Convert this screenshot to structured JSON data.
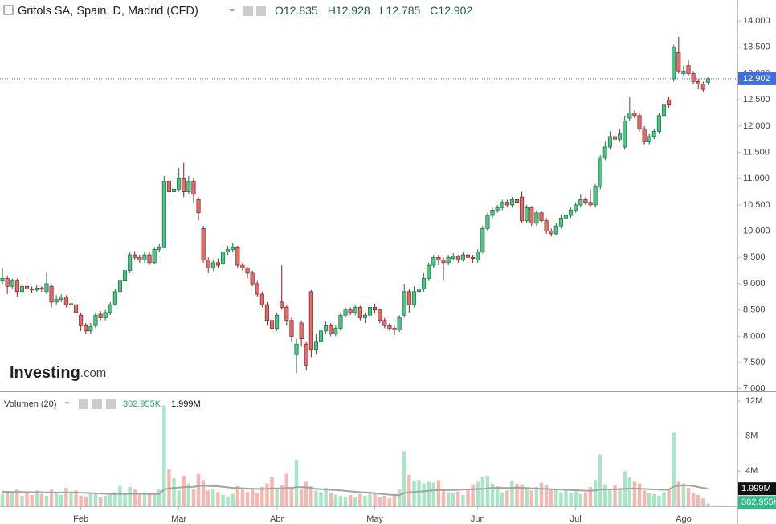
{
  "chart_data": {
    "type": "candlestick",
    "title": "Grifols SA, Spain, D, Madrid (CFD)",
    "legend_letters": [
      "O",
      "H",
      "L",
      "C"
    ],
    "brand": "Investing",
    "brand_suffix": ".com",
    "up_color": "#4cc486",
    "up_border": "#1d6b41",
    "down_color": "#e36b6b",
    "down_border": "#7d2222",
    "last_price_color": "#3d6fe0",
    "ylim": [
      6.95,
      14.4
    ],
    "yticks": [
      {
        "value": 7,
        "label": "7.000"
      },
      {
        "value": 7.5,
        "label": "7.500"
      },
      {
        "value": 8,
        "label": "8.000"
      },
      {
        "value": 8.5,
        "label": "8.500"
      },
      {
        "value": 9,
        "label": "9.000"
      },
      {
        "value": 9.5,
        "label": "9.500"
      },
      {
        "value": 10,
        "label": "10.000"
      },
      {
        "value": 10.5,
        "label": "10.500"
      },
      {
        "value": 11,
        "label": "11.000"
      },
      {
        "value": 11.5,
        "label": "11.500"
      },
      {
        "value": 12,
        "label": "12.000"
      },
      {
        "value": 12.5,
        "label": "12.500"
      },
      {
        "value": 13,
        "label": "13.000"
      },
      {
        "value": 13.5,
        "label": "13.500"
      },
      {
        "value": 14,
        "label": "14.000"
      }
    ],
    "xlim": [
      -0.5,
      150
    ],
    "xticks": [
      {
        "value": 16,
        "label": "Feb"
      },
      {
        "value": 36,
        "label": "Mar"
      },
      {
        "value": 56,
        "label": "Abr"
      },
      {
        "value": 76,
        "label": "May"
      },
      {
        "value": 97,
        "label": "Jun"
      },
      {
        "value": 117,
        "label": "Jul"
      },
      {
        "value": 139,
        "label": "Ago"
      }
    ],
    "ohlc": [
      [
        9.05,
        9.3,
        9.0,
        9.1
      ],
      [
        9.1,
        9.15,
        8.8,
        8.95
      ],
      [
        8.95,
        9.1,
        8.9,
        9.05
      ],
      [
        9.05,
        9.1,
        8.75,
        8.85
      ],
      [
        8.85,
        9.0,
        8.8,
        8.95
      ],
      [
        8.95,
        9.05,
        8.85,
        8.9
      ],
      [
        8.9,
        8.95,
        8.82,
        8.88
      ],
      [
        8.88,
        8.98,
        8.85,
        8.92
      ],
      [
        8.92,
        8.95,
        8.85,
        8.9
      ],
      [
        8.85,
        9.2,
        8.8,
        9.0
      ],
      [
        8.95,
        9.0,
        8.55,
        8.65
      ],
      [
        8.65,
        8.78,
        8.6,
        8.7
      ],
      [
        8.7,
        8.8,
        8.65,
        8.75
      ],
      [
        8.75,
        8.78,
        8.55,
        8.6
      ],
      [
        8.6,
        8.68,
        8.55,
        8.62
      ],
      [
        8.6,
        8.62,
        8.35,
        8.45
      ],
      [
        8.4,
        8.45,
        8.1,
        8.2
      ],
      [
        8.2,
        8.25,
        8.05,
        8.1
      ],
      [
        8.1,
        8.25,
        8.05,
        8.18
      ],
      [
        8.2,
        8.45,
        8.15,
        8.4
      ],
      [
        8.42,
        8.48,
        8.3,
        8.35
      ],
      [
        8.35,
        8.5,
        8.3,
        8.45
      ],
      [
        8.45,
        8.65,
        8.4,
        8.6
      ],
      [
        8.6,
        8.9,
        8.58,
        8.85
      ],
      [
        8.85,
        9.1,
        8.8,
        9.05
      ],
      [
        9.05,
        9.3,
        9.0,
        9.25
      ],
      [
        9.25,
        9.6,
        9.2,
        9.55
      ],
      [
        9.55,
        9.62,
        9.45,
        9.5
      ],
      [
        9.5,
        9.55,
        9.4,
        9.45
      ],
      [
        9.45,
        9.6,
        9.4,
        9.55
      ],
      [
        9.55,
        9.6,
        9.35,
        9.4
      ],
      [
        9.4,
        9.7,
        9.38,
        9.65
      ],
      [
        9.65,
        9.75,
        9.6,
        9.7
      ],
      [
        9.7,
        11.05,
        9.68,
        10.95
      ],
      [
        10.95,
        11.0,
        10.6,
        10.75
      ],
      [
        10.75,
        10.9,
        10.7,
        10.8
      ],
      [
        10.8,
        11.2,
        10.75,
        11.0
      ],
      [
        11.0,
        11.3,
        10.65,
        10.75
      ],
      [
        10.75,
        11.05,
        10.7,
        10.95
      ],
      [
        10.95,
        11.0,
        10.55,
        10.7
      ],
      [
        10.6,
        10.65,
        10.2,
        10.35
      ],
      [
        10.05,
        10.1,
        9.4,
        9.45
      ],
      [
        9.45,
        9.5,
        9.2,
        9.3
      ],
      [
        9.3,
        9.45,
        9.25,
        9.4
      ],
      [
        9.4,
        9.48,
        9.3,
        9.35
      ],
      [
        9.38,
        9.7,
        9.35,
        9.6
      ],
      [
        9.6,
        9.72,
        9.55,
        9.65
      ],
      [
        9.65,
        9.78,
        9.6,
        9.7
      ],
      [
        9.7,
        9.72,
        9.3,
        9.35
      ],
      [
        9.35,
        9.4,
        9.25,
        9.3
      ],
      [
        9.3,
        9.32,
        9.1,
        9.2
      ],
      [
        9.2,
        9.25,
        8.95,
        9.0
      ],
      [
        9.0,
        9.05,
        8.75,
        8.8
      ],
      [
        8.8,
        8.85,
        8.55,
        8.6
      ],
      [
        8.6,
        8.65,
        8.2,
        8.3
      ],
      [
        8.3,
        8.35,
        8.05,
        8.15
      ],
      [
        8.15,
        8.45,
        8.1,
        8.4
      ],
      [
        8.65,
        9.35,
        8.5,
        8.55
      ],
      [
        8.55,
        8.6,
        8.2,
        8.3
      ],
      [
        8.3,
        8.35,
        7.9,
        8.0
      ],
      [
        7.65,
        7.95,
        7.3,
        7.85
      ],
      [
        8.25,
        8.3,
        7.8,
        7.95
      ],
      [
        7.85,
        7.9,
        7.35,
        7.45
      ],
      [
        8.85,
        8.88,
        7.6,
        7.75
      ],
      [
        7.75,
        8.05,
        7.65,
        7.9
      ],
      [
        7.9,
        8.2,
        7.85,
        8.1
      ],
      [
        8.1,
        8.28,
        8.05,
        8.2
      ],
      [
        8.2,
        8.25,
        8.0,
        8.05
      ],
      [
        8.05,
        8.2,
        8.0,
        8.15
      ],
      [
        8.15,
        8.45,
        8.1,
        8.4
      ],
      [
        8.4,
        8.55,
        8.35,
        8.5
      ],
      [
        8.5,
        8.55,
        8.4,
        8.45
      ],
      [
        8.45,
        8.6,
        8.4,
        8.55
      ],
      [
        8.55,
        8.58,
        8.3,
        8.35
      ],
      [
        8.35,
        8.45,
        8.25,
        8.4
      ],
      [
        8.4,
        8.6,
        8.38,
        8.55
      ],
      [
        8.55,
        8.62,
        8.45,
        8.5
      ],
      [
        8.5,
        8.52,
        8.25,
        8.3
      ],
      [
        8.3,
        8.35,
        8.15,
        8.2
      ],
      [
        8.2,
        8.25,
        8.1,
        8.15
      ],
      [
        8.15,
        8.2,
        8.02,
        8.12
      ],
      [
        8.12,
        8.4,
        8.08,
        8.35
      ],
      [
        8.4,
        9.0,
        8.35,
        8.85
      ],
      [
        8.85,
        8.9,
        8.45,
        8.6
      ],
      [
        8.6,
        8.95,
        8.55,
        8.85
      ],
      [
        8.85,
        9.0,
        8.8,
        8.9
      ],
      [
        8.9,
        9.2,
        8.85,
        9.1
      ],
      [
        9.1,
        9.4,
        9.05,
        9.35
      ],
      [
        9.35,
        9.55,
        9.3,
        9.5
      ],
      [
        9.5,
        9.55,
        9.35,
        9.45
      ],
      [
        9.45,
        9.5,
        9.05,
        9.4
      ],
      [
        9.4,
        9.55,
        9.35,
        9.5
      ],
      [
        9.48,
        9.58,
        9.44,
        9.52
      ],
      [
        9.52,
        9.55,
        9.4,
        9.45
      ],
      [
        9.45,
        9.6,
        9.42,
        9.55
      ],
      [
        9.55,
        9.58,
        9.45,
        9.5
      ],
      [
        9.5,
        9.55,
        9.4,
        9.48
      ],
      [
        9.45,
        9.65,
        9.4,
        9.6
      ],
      [
        9.6,
        10.1,
        9.58,
        10.05
      ],
      [
        10.05,
        10.35,
        10.0,
        10.3
      ],
      [
        10.3,
        10.45,
        10.25,
        10.4
      ],
      [
        10.4,
        10.5,
        10.35,
        10.45
      ],
      [
        10.45,
        10.6,
        10.4,
        10.55
      ],
      [
        10.55,
        10.6,
        10.45,
        10.5
      ],
      [
        10.5,
        10.65,
        10.45,
        10.6
      ],
      [
        10.6,
        10.65,
        10.5,
        10.55
      ],
      [
        10.65,
        10.75,
        10.15,
        10.2
      ],
      [
        10.2,
        10.5,
        10.15,
        10.45
      ],
      [
        10.45,
        10.48,
        10.1,
        10.15
      ],
      [
        10.15,
        10.4,
        10.1,
        10.35
      ],
      [
        10.35,
        10.38,
        10.15,
        10.2
      ],
      [
        10.2,
        10.25,
        9.95,
        10.0
      ],
      [
        10.0,
        10.05,
        9.9,
        9.95
      ],
      [
        9.95,
        10.15,
        9.92,
        10.1
      ],
      [
        10.1,
        10.3,
        10.05,
        10.25
      ],
      [
        10.25,
        10.35,
        10.2,
        10.3
      ],
      [
        10.3,
        10.45,
        10.25,
        10.4
      ],
      [
        10.4,
        10.55,
        10.35,
        10.5
      ],
      [
        10.5,
        10.7,
        10.45,
        10.6
      ],
      [
        10.6,
        10.65,
        10.5,
        10.55
      ],
      [
        10.55,
        10.8,
        10.45,
        10.5
      ],
      [
        10.5,
        10.9,
        10.45,
        10.85
      ],
      [
        10.85,
        11.45,
        10.8,
        11.4
      ],
      [
        11.4,
        11.7,
        11.35,
        11.6
      ],
      [
        11.6,
        11.9,
        11.55,
        11.8
      ],
      [
        11.8,
        11.85,
        11.65,
        11.75
      ],
      [
        11.75,
        11.95,
        11.7,
        11.85
      ],
      [
        11.6,
        12.2,
        11.55,
        12.1
      ],
      [
        12.15,
        12.55,
        12.1,
        12.25
      ],
      [
        12.25,
        12.3,
        12.15,
        12.2
      ],
      [
        12.2,
        12.25,
        11.9,
        11.95
      ],
      [
        11.95,
        12.0,
        11.65,
        11.7
      ],
      [
        11.7,
        11.85,
        11.65,
        11.8
      ],
      [
        11.8,
        11.95,
        11.75,
        11.9
      ],
      [
        11.9,
        12.25,
        11.85,
        12.2
      ],
      [
        12.2,
        12.45,
        12.15,
        12.4
      ],
      [
        12.5,
        12.55,
        12.35,
        12.4
      ],
      [
        12.9,
        13.55,
        12.85,
        13.5
      ],
      [
        13.4,
        13.7,
        13.0,
        13.05
      ],
      [
        13.0,
        13.15,
        12.95,
        13.05
      ],
      [
        13.15,
        13.25,
        12.95,
        13.0
      ],
      [
        13.0,
        13.05,
        12.8,
        12.85
      ],
      [
        12.85,
        12.9,
        12.7,
        12.8
      ],
      [
        12.8,
        12.85,
        12.65,
        12.7
      ],
      [
        12.835,
        12.928,
        12.785,
        12.902
      ]
    ],
    "volume": {
      "title": "Volumen (20)",
      "up_color": "#a6e5c6",
      "down_color": "#f6b7b1",
      "ma_color": "#a3a3a3",
      "value_label": "302.955K",
      "ma_label": "1.999M",
      "ylim": [
        0,
        13
      ],
      "yticks": [
        {
          "value": 4,
          "label": "4M"
        },
        {
          "value": 8,
          "label": "8M"
        },
        {
          "value": 12,
          "label": "12M"
        }
      ],
      "values": [
        1.4,
        1.7,
        1.5,
        1.9,
        1.2,
        1.6,
        1.3,
        1.8,
        1.4,
        1.2,
        1.9,
        1.5,
        1.3,
        2.1,
        1.6,
        1.8,
        1.2,
        1.1,
        1.5,
        1.4,
        1.0,
        1.2,
        1.3,
        1.6,
        2.3,
        1.5,
        2.2,
        1.9,
        1.4,
        1.6,
        1.5,
        1.3,
        1.9,
        11.5,
        4.2,
        3.2,
        1.8,
        3.5,
        2.6,
        2.0,
        3.7,
        3.0,
        1.8,
        2.0,
        1.6,
        1.3,
        1.1,
        1.4,
        2.3,
        1.9,
        1.6,
        2.0,
        1.5,
        2.2,
        2.6,
        3.3,
        2.1,
        2.4,
        3.7,
        2.2,
        5.3,
        2.0,
        2.8,
        2.3,
        1.8,
        1.6,
        2.1,
        1.5,
        1.3,
        1.2,
        1.1,
        1.3,
        1.0,
        1.4,
        1.2,
        1.6,
        1.5,
        1.0,
        1.2,
        0.9,
        1.4,
        1.9,
        6.3,
        3.6,
        2.9,
        3.0,
        2.6,
        2.8,
        2.7,
        3.0,
        2.0,
        1.6,
        1.5,
        1.7,
        1.3,
        1.9,
        2.5,
        2.8,
        3.3,
        3.5,
        2.6,
        2.3,
        1.6,
        1.8,
        2.9,
        2.6,
        2.5,
        2.0,
        1.8,
        2.2,
        2.7,
        2.4,
        1.9,
        2.0,
        1.6,
        1.8,
        1.5,
        1.7,
        1.4,
        1.6,
        2.2,
        3.0,
        5.9,
        2.5,
        2.0,
        2.4,
        2.1,
        4.0,
        3.3,
        2.8,
        2.6,
        1.8,
        1.5,
        1.4,
        1.2,
        1.6,
        1.9,
        8.4,
        2.8,
        2.6,
        2.1,
        1.5,
        1.3,
        0.9,
        0.302955
      ],
      "ma": [
        1.65,
        1.64,
        1.63,
        1.62,
        1.62,
        1.61,
        1.6,
        1.6,
        1.59,
        1.58,
        1.58,
        1.57,
        1.57,
        1.58,
        1.58,
        1.57,
        1.55,
        1.52,
        1.5,
        1.48,
        1.45,
        1.42,
        1.4,
        1.4,
        1.42,
        1.41,
        1.42,
        1.43,
        1.42,
        1.41,
        1.4,
        1.39,
        1.4,
        1.9,
        2.02,
        2.1,
        2.12,
        2.18,
        2.2,
        2.22,
        2.3,
        2.35,
        2.32,
        2.3,
        2.28,
        2.22,
        2.15,
        2.1,
        2.08,
        2.05,
        2.02,
        2.0,
        1.98,
        1.98,
        2.0,
        2.05,
        2.02,
        2.05,
        2.1,
        2.08,
        2.2,
        2.18,
        2.15,
        2.1,
        2.0,
        1.95,
        1.92,
        1.88,
        1.85,
        1.8,
        1.75,
        1.7,
        1.65,
        1.6,
        1.58,
        1.55,
        1.5,
        1.42,
        1.38,
        1.32,
        1.28,
        1.25,
        1.5,
        1.58,
        1.62,
        1.68,
        1.72,
        1.78,
        1.82,
        1.85,
        1.85,
        1.84,
        1.86,
        1.88,
        1.9,
        1.92,
        1.95,
        1.98,
        2.0,
        2.05,
        2.08,
        2.1,
        2.1,
        2.08,
        2.1,
        2.12,
        2.1,
        2.08,
        2.05,
        2.02,
        2.0,
        1.98,
        1.95,
        1.92,
        1.9,
        1.88,
        1.85,
        1.82,
        1.8,
        1.78,
        1.78,
        1.8,
        1.9,
        1.92,
        1.92,
        1.93,
        1.95,
        2.0,
        2.02,
        2.02,
        2.0,
        1.98,
        1.95,
        1.92,
        1.9,
        1.88,
        1.9,
        2.25,
        2.35,
        2.4,
        2.38,
        2.3,
        2.2,
        2.1,
        1.999
      ]
    }
  }
}
